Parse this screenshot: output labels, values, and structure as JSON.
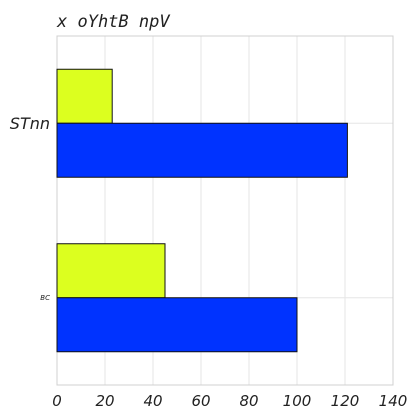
{
  "chart_data": {
    "type": "bar",
    "orientation": "horizontal",
    "title": "x oYhtB npV",
    "categories": [
      "STnn",
      "BC"
    ],
    "series": [
      {
        "values": [
          23,
          45
        ],
        "color": "#dcff1f"
      },
      {
        "values": [
          121,
          100
        ],
        "color": "#0033ff"
      }
    ],
    "xlim": [
      0,
      140
    ],
    "xticks": [
      0,
      20,
      40,
      60,
      80,
      100,
      120,
      140
    ],
    "xlabel": "",
    "ylabel": "",
    "grid": true,
    "legend": "none"
  }
}
